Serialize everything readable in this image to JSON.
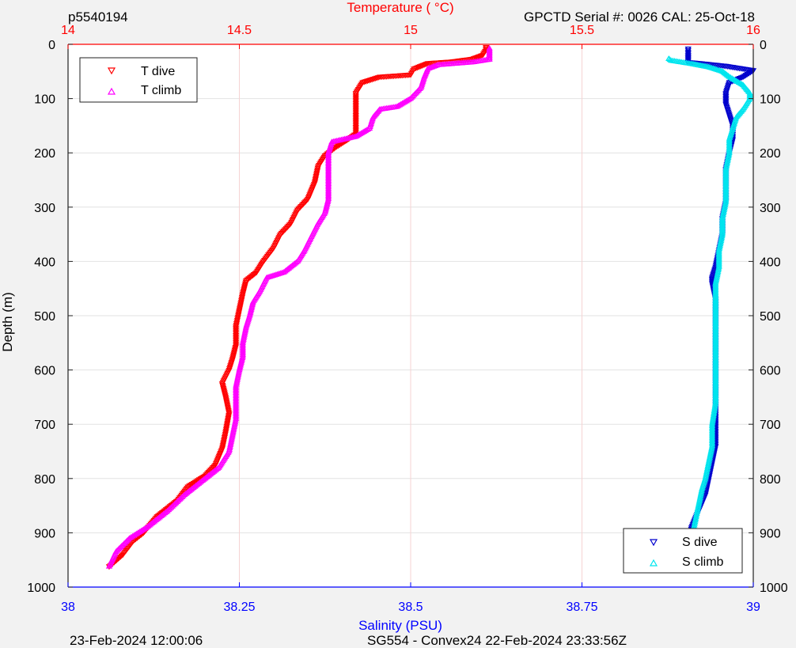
{
  "header": {
    "top_left": "p5540194",
    "top_right": "GPCTD Serial #: 0026 CAL: 25-Oct-18"
  },
  "footer": {
    "left": "23-Feb-2024 12:00:06",
    "center": "SG554 - Convex24 22-Feb-2024 23:33:56Z"
  },
  "chart_data": {
    "type": "scatter",
    "ylabel": "Depth (m)",
    "ylim": [
      0,
      1000
    ],
    "y_reversed": true,
    "y_ticks": [
      0,
      100,
      200,
      300,
      400,
      500,
      600,
      700,
      800,
      900,
      1000
    ],
    "top_axis": {
      "label": "Temperature (    °C)",
      "range": [
        14,
        16
      ],
      "ticks": [
        "14",
        "14.5",
        "15",
        "15.5",
        "16"
      ],
      "color": "#ff0000"
    },
    "bottom_axis": {
      "label": "Salinity (PSU)",
      "range": [
        38,
        39
      ],
      "ticks": [
        "38",
        "38.25",
        "38.5",
        "38.75",
        "39"
      ],
      "color": "#0000ff"
    },
    "grid": true,
    "legends": [
      {
        "placement": "top-left",
        "entries": [
          "T dive",
          "T climb"
        ]
      },
      {
        "placement": "bottom-right",
        "entries": [
          "S dive",
          "S climb"
        ]
      }
    ],
    "series": [
      {
        "name": "T dive",
        "axis": "temperature",
        "color": "#ff0000",
        "marker": "triangle-down",
        "points": [
          [
            14.12,
            962
          ],
          [
            14.16,
            940
          ],
          [
            14.19,
            915
          ],
          [
            14.22,
            900
          ],
          [
            14.26,
            870
          ],
          [
            14.32,
            840
          ],
          [
            14.35,
            815
          ],
          [
            14.4,
            795
          ],
          [
            14.43,
            775
          ],
          [
            14.45,
            745
          ],
          [
            14.46,
            715
          ],
          [
            14.47,
            680
          ],
          [
            14.46,
            650
          ],
          [
            14.45,
            625
          ],
          [
            14.47,
            600
          ],
          [
            14.48,
            580
          ],
          [
            14.49,
            555
          ],
          [
            14.49,
            520
          ],
          [
            14.5,
            490
          ],
          [
            14.51,
            460
          ],
          [
            14.52,
            435
          ],
          [
            14.55,
            420
          ],
          [
            14.57,
            400
          ],
          [
            14.6,
            375
          ],
          [
            14.62,
            350
          ],
          [
            14.65,
            330
          ],
          [
            14.67,
            305
          ],
          [
            14.7,
            285
          ],
          [
            14.72,
            255
          ],
          [
            14.73,
            225
          ],
          [
            14.75,
            205
          ],
          [
            14.78,
            190
          ],
          [
            14.81,
            178
          ],
          [
            14.84,
            165
          ],
          [
            14.84,
            140
          ],
          [
            14.84,
            115
          ],
          [
            14.84,
            90
          ],
          [
            14.86,
            70
          ],
          [
            14.91,
            60
          ],
          [
            15.0,
            56
          ],
          [
            15.01,
            45
          ],
          [
            15.05,
            35
          ],
          [
            15.12,
            32
          ],
          [
            15.18,
            27
          ],
          [
            15.21,
            20
          ],
          [
            15.22,
            10
          ],
          [
            15.22,
            3
          ]
        ]
      },
      {
        "name": "T climb",
        "axis": "temperature",
        "color": "#ff00ff",
        "marker": "triangle-up",
        "points": [
          [
            14.12,
            962
          ],
          [
            14.14,
            935
          ],
          [
            14.18,
            910
          ],
          [
            14.23,
            890
          ],
          [
            14.29,
            860
          ],
          [
            14.34,
            830
          ],
          [
            14.4,
            800
          ],
          [
            14.44,
            780
          ],
          [
            14.47,
            750
          ],
          [
            14.48,
            720
          ],
          [
            14.49,
            690
          ],
          [
            14.49,
            660
          ],
          [
            14.49,
            630
          ],
          [
            14.5,
            600
          ],
          [
            14.51,
            575
          ],
          [
            14.51,
            550
          ],
          [
            14.52,
            520
          ],
          [
            14.53,
            500
          ],
          [
            14.54,
            475
          ],
          [
            14.56,
            455
          ],
          [
            14.58,
            430
          ],
          [
            14.63,
            420
          ],
          [
            14.67,
            400
          ],
          [
            14.69,
            380
          ],
          [
            14.71,
            355
          ],
          [
            14.73,
            330
          ],
          [
            14.75,
            310
          ],
          [
            14.76,
            285
          ],
          [
            14.76,
            260
          ],
          [
            14.76,
            230
          ],
          [
            14.76,
            200
          ],
          [
            14.77,
            180
          ],
          [
            14.84,
            170
          ],
          [
            14.88,
            155
          ],
          [
            14.89,
            135
          ],
          [
            14.91,
            120
          ],
          [
            14.96,
            115
          ],
          [
            15.0,
            100
          ],
          [
            15.03,
            80
          ],
          [
            15.04,
            60
          ],
          [
            15.05,
            45
          ],
          [
            15.08,
            38
          ],
          [
            15.18,
            33
          ],
          [
            15.23,
            28
          ],
          [
            15.23,
            15
          ],
          [
            15.23,
            5
          ]
        ]
      },
      {
        "name": "S dive",
        "axis": "salinity",
        "color": "#0000cd",
        "marker": "triangle-down",
        "points": [
          [
            38.905,
            962
          ],
          [
            38.905,
            940
          ],
          [
            38.905,
            915
          ],
          [
            38.91,
            890
          ],
          [
            38.92,
            860
          ],
          [
            38.93,
            830
          ],
          [
            38.935,
            800
          ],
          [
            38.94,
            770
          ],
          [
            38.945,
            740
          ],
          [
            38.945,
            700
          ],
          [
            38.945,
            660
          ],
          [
            38.945,
            620
          ],
          [
            38.945,
            590
          ],
          [
            38.945,
            560
          ],
          [
            38.945,
            530
          ],
          [
            38.945,
            500
          ],
          [
            38.945,
            470
          ],
          [
            38.94,
            440
          ],
          [
            38.94,
            430
          ],
          [
            38.945,
            410
          ],
          [
            38.95,
            380
          ],
          [
            38.955,
            350
          ],
          [
            38.955,
            320
          ],
          [
            38.96,
            290
          ],
          [
            38.96,
            260
          ],
          [
            38.96,
            230
          ],
          [
            38.965,
            200
          ],
          [
            38.97,
            175
          ],
          [
            38.97,
            150
          ],
          [
            38.965,
            130
          ],
          [
            38.96,
            110
          ],
          [
            38.96,
            90
          ],
          [
            38.965,
            70
          ],
          [
            38.985,
            60
          ],
          [
            39.0,
            48
          ],
          [
            38.96,
            40
          ],
          [
            38.93,
            36
          ],
          [
            38.905,
            33
          ],
          [
            38.905,
            20
          ],
          [
            38.905,
            5
          ]
        ]
      },
      {
        "name": "S climb",
        "axis": "salinity",
        "color": "#00e5ee",
        "marker": "triangle-up",
        "points": [
          [
            38.9,
            962
          ],
          [
            38.905,
            935
          ],
          [
            38.91,
            910
          ],
          [
            38.915,
            880
          ],
          [
            38.92,
            850
          ],
          [
            38.925,
            820
          ],
          [
            38.93,
            800
          ],
          [
            38.935,
            770
          ],
          [
            38.94,
            740
          ],
          [
            38.94,
            700
          ],
          [
            38.945,
            660
          ],
          [
            38.945,
            620
          ],
          [
            38.945,
            590
          ],
          [
            38.945,
            560
          ],
          [
            38.945,
            530
          ],
          [
            38.945,
            500
          ],
          [
            38.945,
            470
          ],
          [
            38.945,
            440
          ],
          [
            38.95,
            410
          ],
          [
            38.95,
            380
          ],
          [
            38.955,
            350
          ],
          [
            38.955,
            320
          ],
          [
            38.96,
            290
          ],
          [
            38.96,
            260
          ],
          [
            38.96,
            230
          ],
          [
            38.965,
            200
          ],
          [
            38.965,
            175
          ],
          [
            38.97,
            155
          ],
          [
            38.975,
            135
          ],
          [
            38.985,
            120
          ],
          [
            38.995,
            100
          ],
          [
            38.995,
            90
          ],
          [
            38.985,
            75
          ],
          [
            38.965,
            60
          ],
          [
            38.955,
            50
          ],
          [
            38.935,
            42
          ],
          [
            38.91,
            36
          ],
          [
            38.88,
            30
          ],
          [
            38.875,
            25
          ]
        ]
      }
    ]
  }
}
